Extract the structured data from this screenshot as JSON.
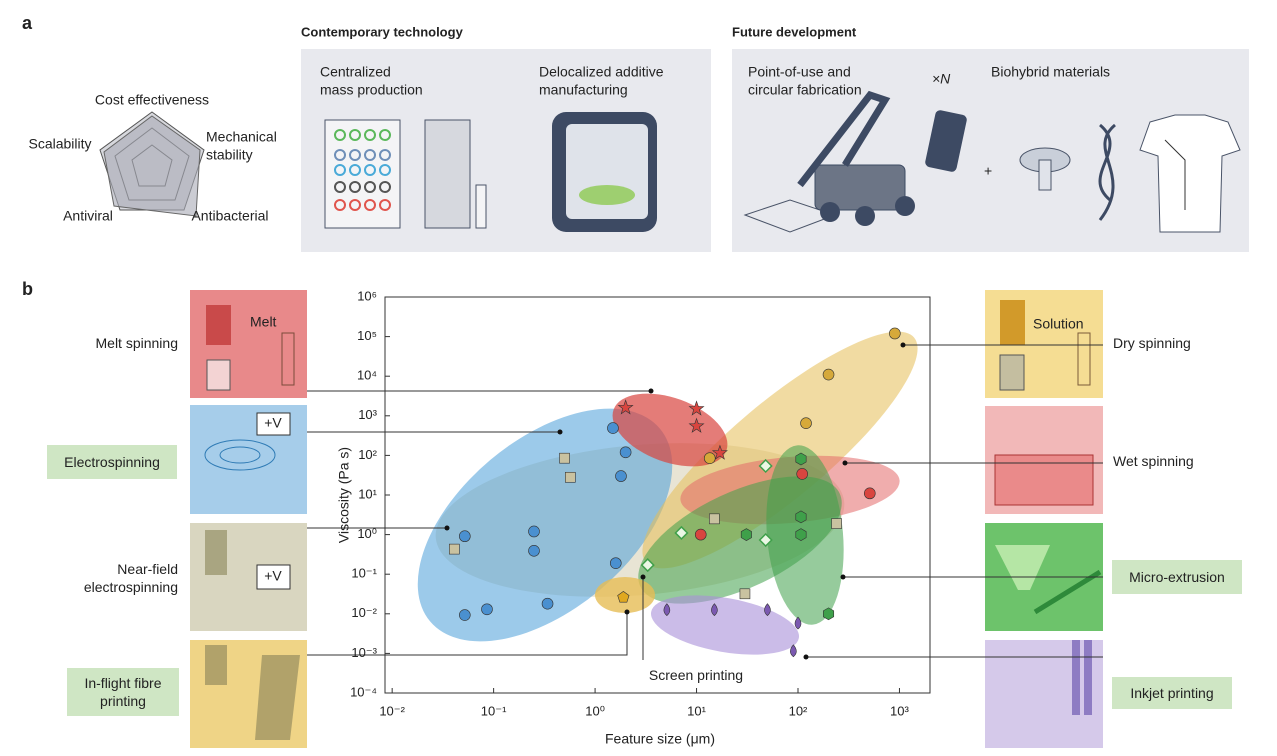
{
  "panel_a": {
    "label": "a",
    "radar_axes": {
      "top": "Cost effectiveness",
      "right": [
        "Mechanical",
        "stability"
      ],
      "left": "Scalability",
      "bottom_left": "Antiviral",
      "bottom_right": "Antibacterial"
    },
    "contemporary": {
      "title": "Contemporary technology",
      "items": [
        [
          "Centralized",
          "mass production"
        ],
        [
          "Delocalized additive",
          "manufacturing"
        ]
      ]
    },
    "future": {
      "title": "Future development",
      "items": [
        [
          "Point-of-use and",
          "circular fabrication"
        ],
        [
          "Biohybrid materials"
        ]
      ],
      "multiplier": "×N",
      "plus": "+"
    }
  },
  "panel_b": {
    "label": "b",
    "icons": {
      "melt": "Melt",
      "electro": "+V",
      "near_field": "+V",
      "dry": "Solution"
    }
  },
  "chart_data": {
    "type": "scatter",
    "x_label": "Feature size (μm)",
    "y_label": "Viscosity (Pa s)",
    "log_x": true,
    "log_y": true,
    "xlim": [
      0.0085,
      2000
    ],
    "ylim": [
      0.0001,
      1000000
    ],
    "xticks": [
      {
        "value": 0.01,
        "label": "10⁻²"
      },
      {
        "value": 0.1,
        "label": "10⁻¹"
      },
      {
        "value": 1,
        "label": "10⁰"
      },
      {
        "value": 10,
        "label": "10¹"
      },
      {
        "value": 100,
        "label": "10²"
      },
      {
        "value": 1000,
        "label": "10³"
      }
    ],
    "yticks": [
      {
        "value": 0.0001,
        "label": "10⁻⁴"
      },
      {
        "value": 0.001,
        "label": "10⁻³"
      },
      {
        "value": 0.01,
        "label": "10⁻²"
      },
      {
        "value": 0.1,
        "label": "10⁻¹"
      },
      {
        "value": 1,
        "label": "10⁰"
      },
      {
        "value": 10,
        "label": "10¹"
      },
      {
        "value": 100,
        "label": "10²"
      },
      {
        "value": 1000,
        "label": "10³"
      },
      {
        "value": 10000,
        "label": "10⁴"
      },
      {
        "value": 100000,
        "label": "10⁵"
      },
      {
        "value": 1000000,
        "label": "10⁶"
      }
    ],
    "series": [
      {
        "name": "Melt spinning",
        "color": "#d9453f",
        "marker": "star",
        "x": [
          2.0,
          10,
          10,
          17
        ],
        "values": [
          1600,
          1500,
          550,
          115
        ]
      },
      {
        "name": "Electrospinning",
        "color": "#4a90d0",
        "marker": "circle",
        "x": [
          0.052,
          0.25,
          0.25,
          1.5,
          2.0,
          1.8,
          1.6,
          0.052,
          0.086,
          0.34
        ],
        "values": [
          0.91,
          1.2,
          0.39,
          490,
          120,
          30,
          0.19,
          0.0093,
          0.013,
          0.018
        ]
      },
      {
        "name": "Near-field electrospinning",
        "color": "#c9c2a0",
        "marker": "square",
        "x": [
          0.5,
          0.57,
          0.041,
          15,
          30,
          240
        ],
        "values": [
          85,
          28,
          0.43,
          2.5,
          0.032,
          1.9
        ]
      },
      {
        "name": "In-flight fibre printing",
        "color": "#e0a820",
        "marker": "pentagon",
        "x": [
          1.9
        ],
        "values": [
          0.026
        ]
      },
      {
        "name": "Dry spinning",
        "color": "#d6a93a",
        "marker": "circle",
        "x": [
          900,
          200,
          120,
          13.5
        ],
        "values": [
          120000,
          11000,
          650,
          85
        ]
      },
      {
        "name": "Wet spinning",
        "color": "#d9453f",
        "marker": "circle",
        "x": [
          11,
          110,
          510
        ],
        "values": [
          1.0,
          34,
          11
        ]
      },
      {
        "name": "Micro-extrusion",
        "color": "#3fa04a",
        "marker": "hexagon",
        "x": [
          107,
          107,
          107,
          31,
          200
        ],
        "values": [
          81,
          2.8,
          1.0,
          1.0,
          0.01
        ]
      },
      {
        "name": "Inkjet printing",
        "color": "#7b59b0",
        "marker": "drop",
        "x": [
          5.1,
          15,
          50,
          100,
          90
        ],
        "values": [
          0.012,
          0.012,
          0.012,
          0.0055,
          0.0011
        ]
      },
      {
        "name": "Screen printing",
        "color": "#9bd48c",
        "marker": "diamond",
        "x": [
          7.1,
          48,
          48,
          3.3
        ],
        "values": [
          1.1,
          54,
          0.73,
          0.17
        ]
      }
    ]
  }
}
